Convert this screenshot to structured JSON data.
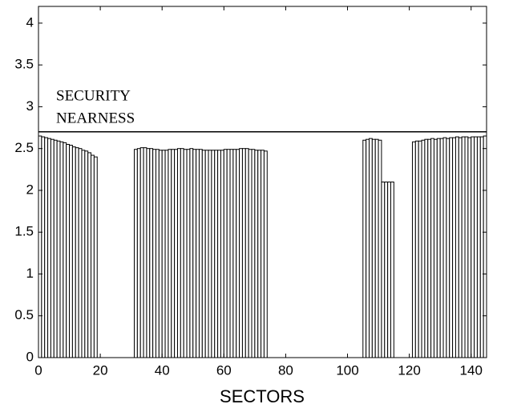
{
  "chart_data": {
    "type": "bar",
    "x": [
      0,
      1,
      2,
      3,
      4,
      5,
      6,
      7,
      8,
      9,
      10,
      11,
      12,
      13,
      14,
      15,
      16,
      17,
      18,
      19,
      20,
      21,
      22,
      23,
      24,
      25,
      26,
      27,
      28,
      29,
      30,
      31,
      32,
      33,
      34,
      35,
      36,
      37,
      38,
      39,
      40,
      41,
      42,
      43,
      44,
      45,
      46,
      47,
      48,
      49,
      50,
      51,
      52,
      53,
      54,
      55,
      56,
      57,
      58,
      59,
      60,
      61,
      62,
      63,
      64,
      65,
      66,
      67,
      68,
      69,
      70,
      71,
      72,
      73,
      74,
      75,
      76,
      77,
      78,
      79,
      80,
      81,
      82,
      83,
      84,
      85,
      86,
      87,
      88,
      89,
      90,
      91,
      92,
      93,
      94,
      95,
      96,
      97,
      98,
      99,
      100,
      101,
      102,
      103,
      104,
      105,
      106,
      107,
      108,
      109,
      110,
      111,
      112,
      113,
      114,
      115,
      116,
      117,
      118,
      119,
      120,
      121,
      122,
      123,
      124,
      125,
      126,
      127,
      128,
      129,
      130,
      131,
      132,
      133,
      134,
      135,
      136,
      137,
      138,
      139,
      140,
      141,
      142,
      143,
      144
    ],
    "values": [
      2.65,
      2.64,
      2.63,
      2.62,
      2.61,
      2.6,
      2.59,
      2.58,
      2.57,
      2.55,
      2.54,
      2.52,
      2.51,
      2.5,
      2.48,
      2.47,
      2.45,
      2.42,
      2.4,
      0,
      0,
      0,
      0,
      0,
      0,
      0,
      0,
      0,
      0,
      0,
      0,
      2.49,
      2.5,
      2.51,
      2.51,
      2.5,
      2.5,
      2.49,
      2.49,
      2.48,
      2.48,
      2.48,
      2.49,
      2.49,
      2.49,
      2.5,
      2.5,
      2.49,
      2.49,
      2.5,
      2.49,
      2.49,
      2.49,
      2.48,
      2.48,
      2.48,
      2.48,
      2.48,
      2.48,
      2.48,
      2.49,
      2.49,
      2.49,
      2.49,
      2.49,
      2.5,
      2.5,
      2.5,
      2.49,
      2.49,
      2.48,
      2.48,
      2.48,
      2.47,
      0,
      0,
      0,
      0,
      0,
      0,
      0,
      0,
      0,
      0,
      0,
      0,
      0,
      0,
      0,
      0,
      0,
      0,
      0,
      0,
      0,
      0,
      0,
      0,
      0,
      0,
      0,
      0,
      0,
      0,
      0,
      2.6,
      2.61,
      2.62,
      2.61,
      2.61,
      2.6,
      2.1,
      2.1,
      2.1,
      2.1,
      0,
      0,
      0,
      0,
      0,
      0,
      2.58,
      2.59,
      2.59,
      2.6,
      2.61,
      2.61,
      2.62,
      2.61,
      2.62,
      2.62,
      2.63,
      2.62,
      2.63,
      2.63,
      2.64,
      2.63,
      2.64,
      2.64,
      2.63,
      2.64,
      2.64,
      2.64,
      2.64,
      2.65
    ],
    "color": "#ffffff",
    "xlabel": "SECTORS",
    "threshold": 2.7,
    "annotation": [
      "SECURITY",
      "NEARNESS"
    ],
    "xlim": [
      0,
      145
    ],
    "xticks": [
      0,
      20,
      40,
      60,
      80,
      100,
      120,
      140
    ],
    "ylim": [
      0,
      4.2
    ],
    "yticks": [
      0,
      0.5,
      1,
      1.5,
      2,
      2.5,
      3,
      3.5,
      4
    ]
  }
}
